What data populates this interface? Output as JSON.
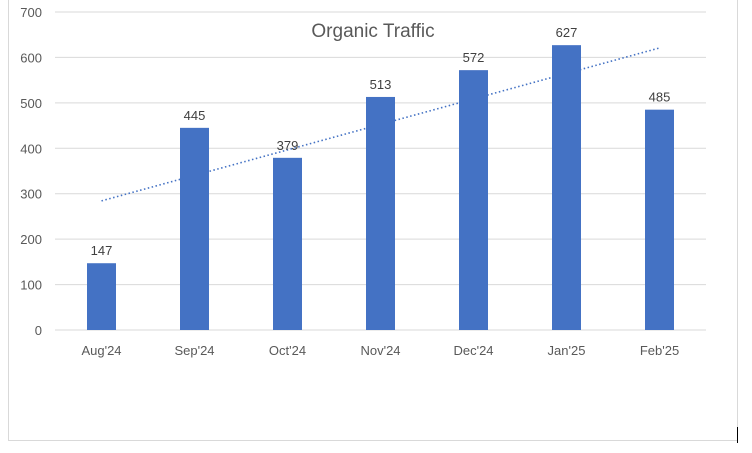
{
  "chart_data": {
    "type": "bar",
    "title": "Organic Traffic",
    "xlabel": "",
    "ylabel": "",
    "categories": [
      "Aug'24",
      "Sep'24",
      "Oct'24",
      "Nov'24",
      "Dec'24",
      "Jan'25",
      "Feb'25"
    ],
    "values": [
      147,
      445,
      379,
      513,
      572,
      627,
      485
    ],
    "data_labels": [
      "147",
      "445",
      "379",
      "513",
      "572",
      "627",
      "485"
    ],
    "ylim": [
      0,
      700
    ],
    "yticks": [
      0,
      100,
      200,
      300,
      400,
      500,
      600,
      700
    ],
    "ytick_labels": [
      "0",
      "100",
      "200",
      "300",
      "400",
      "500",
      "600",
      "700"
    ],
    "grid": true,
    "legend": "none",
    "trendline": {
      "type": "linear",
      "style": "dotted"
    },
    "colors": {
      "bar": "#4472C4",
      "trend": "#4472C4",
      "grid": "#d9d9d9",
      "text": "#595959"
    }
  }
}
